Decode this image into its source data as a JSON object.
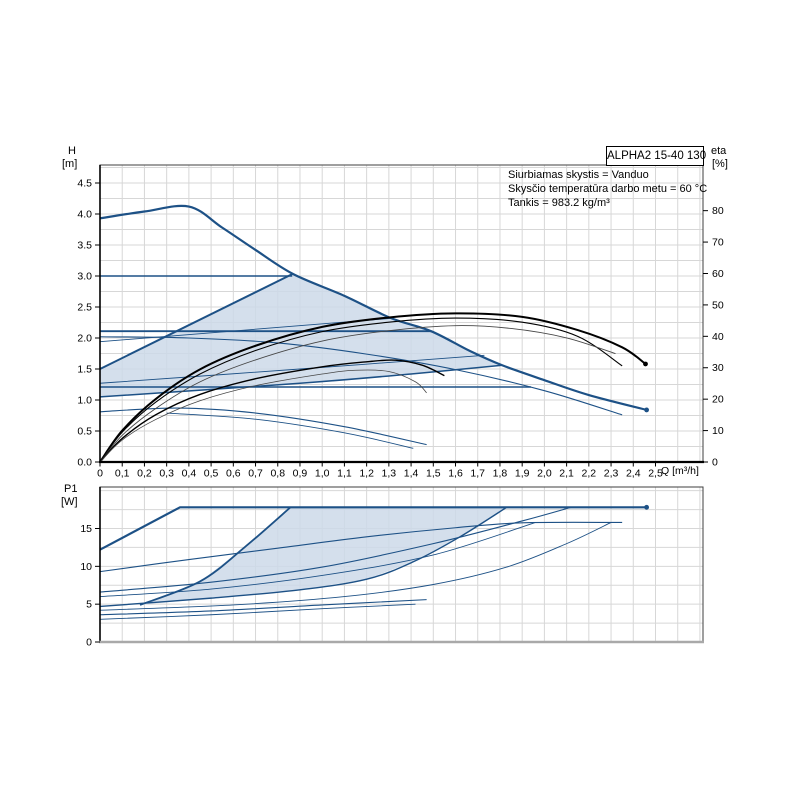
{
  "pump_name": "ALPHA2 15-40 130",
  "info_lines": [
    "Siurbiamas skystis = Vanduo",
    "Skysčio temperatūra darbo metu = 60 °C",
    "Tankis = 983.2 kg/m³"
  ],
  "colors": {
    "blue": "#1d5186",
    "black": "#000000",
    "gray": "#474747",
    "shade": "#cdd9e9",
    "grid": "#d7d7d7",
    "border": "#3f3f3f",
    "axis_black": "#000000",
    "axis_gray": "#a9a9a9",
    "text": "#000000"
  },
  "chart_data": [
    {
      "type": "line",
      "name": "qh-eta-chart",
      "x": {
        "label": "Q [m³/h]",
        "min": 0,
        "max": 2.7138,
        "grid_step": 0.1,
        "tick_step": 0.1,
        "tick_labels": [
          "0",
          "0,1",
          "0,2",
          "0,3",
          "0,4",
          "0,5",
          "0,6",
          "0,7",
          "0,8",
          "0,9",
          "1,0",
          "1,1",
          "1,2",
          "1,3",
          "1,4",
          "1,5",
          "1,6",
          "1,7",
          "1,8",
          "1,9",
          "2,0",
          "2,1",
          "2,2",
          "2,3",
          "2,4",
          "2,5"
        ]
      },
      "y_left": {
        "title_lines": [
          "H",
          "[m]"
        ],
        "min": 0,
        "max": 4.7903,
        "grid_step": 0.25,
        "tick_step": 0.5,
        "tick_labels": [
          "0.0",
          "0.5",
          "1.0",
          "1.5",
          "2.0",
          "2.5",
          "3.0",
          "3.5",
          "4.0",
          "4.5"
        ]
      },
      "y_right": {
        "title_lines": [
          "eta",
          "[%]"
        ],
        "min": 0,
        "max": 94.53,
        "tick_step": 10,
        "tick_labels": [
          "0",
          "10",
          "20",
          "30",
          "40",
          "50",
          "60",
          "70",
          "80"
        ]
      },
      "shade_polygon": [
        [
          0,
          1.05
        ],
        [
          0,
          1.5
        ],
        [
          0.865,
          3.03
        ],
        [
          1.1,
          2.68
        ],
        [
          1.31,
          2.32
        ],
        [
          1.49,
          2.11
        ],
        [
          1.665,
          1.79
        ],
        [
          1.81,
          1.56
        ],
        [
          1.4,
          1.42
        ],
        [
          0.9,
          1.27
        ]
      ],
      "series": [
        {
          "name": "max-speed-curve",
          "axis": "left",
          "color": "blue",
          "width": 2.2,
          "smooth": true,
          "end_marker": true,
          "points": [
            [
              0,
              3.93
            ],
            [
              0.2,
              4.04
            ],
            [
              0.4,
              4.12
            ],
            [
              0.55,
              3.78
            ],
            [
              0.7,
              3.42
            ],
            [
              0.87,
              3.03
            ],
            [
              1.1,
              2.68
            ],
            [
              1.31,
              2.32
            ],
            [
              1.49,
              2.11
            ],
            [
              1.665,
              1.79
            ],
            [
              1.81,
              1.56
            ],
            [
              2.0,
              1.32
            ],
            [
              2.2,
              1.08
            ],
            [
              2.46,
              0.84
            ]
          ]
        },
        {
          "name": "speed-2-curve",
          "axis": "left",
          "color": "blue",
          "width": 1.1,
          "smooth": true,
          "points": [
            [
              0,
              2.02
            ],
            [
              0.4,
              2.0
            ],
            [
              0.8,
              1.92
            ],
            [
              1.2,
              1.74
            ],
            [
              1.6,
              1.49
            ],
            [
              2.0,
              1.15
            ],
            [
              2.35,
              0.76
            ]
          ]
        },
        {
          "name": "speed-1-curve-a",
          "axis": "left",
          "color": "blue",
          "width": 1.1,
          "smooth": true,
          "points": [
            [
              0,
              0.81
            ],
            [
              0.35,
              0.87
            ],
            [
              0.7,
              0.79
            ],
            [
              1.1,
              0.57
            ],
            [
              1.47,
              0.28
            ]
          ]
        },
        {
          "name": "speed-1-curve-b",
          "axis": "left",
          "color": "blue",
          "width": 0.9,
          "smooth": true,
          "points": [
            [
              0.3,
              0.79
            ],
            [
              0.7,
              0.69
            ],
            [
              1.1,
              0.47
            ],
            [
              1.41,
              0.22
            ]
          ]
        },
        {
          "name": "const-pressure-3",
          "axis": "left",
          "color": "blue",
          "width": 1.5,
          "smooth": false,
          "points": [
            [
              0,
              3.0
            ],
            [
              0.865,
              3.0
            ]
          ]
        },
        {
          "name": "const-pressure-2",
          "axis": "left",
          "color": "blue",
          "width": 1.8,
          "smooth": false,
          "points": [
            [
              0,
              2.11
            ],
            [
              1.49,
              2.11
            ]
          ]
        },
        {
          "name": "const-pressure-1",
          "axis": "left",
          "color": "blue",
          "width": 1.5,
          "smooth": false,
          "points": [
            [
              0,
              1.21
            ],
            [
              1.94,
              1.21
            ]
          ]
        },
        {
          "name": "prop-pressure-max",
          "axis": "left",
          "color": "blue",
          "width": 2.0,
          "smooth": false,
          "points": [
            [
              0,
              1.5
            ],
            [
              0.865,
              3.03
            ]
          ]
        },
        {
          "name": "prop-pressure-mid",
          "axis": "left",
          "color": "blue",
          "width": 0.9,
          "smooth": true,
          "points": [
            [
              0,
              1.27
            ],
            [
              0.9,
              1.5
            ],
            [
              1.73,
              1.72
            ]
          ]
        },
        {
          "name": "prop-pressure-aux",
          "axis": "left",
          "color": "blue",
          "width": 0.9,
          "smooth": false,
          "points": [
            [
              0,
              1.94
            ],
            [
              1.32,
              2.32
            ]
          ]
        },
        {
          "name": "prop-pressure-min",
          "axis": "left",
          "color": "blue",
          "width": 1.5,
          "smooth": true,
          "points": [
            [
              0,
              1.05
            ],
            [
              0.9,
              1.27
            ],
            [
              1.4,
              1.42
            ],
            [
              1.81,
              1.56
            ]
          ]
        },
        {
          "name": "eta-curve-1",
          "axis": "right",
          "color": "black",
          "width": 2.0,
          "smooth": true,
          "end_marker": true,
          "points": [
            [
              0,
              0
            ],
            [
              0.1,
              10
            ],
            [
              0.25,
              20
            ],
            [
              0.45,
              29.5
            ],
            [
              0.7,
              37
            ],
            [
              1.0,
              43
            ],
            [
              1.3,
              46
            ],
            [
              1.6,
              47.3
            ],
            [
              1.9,
              46.2
            ],
            [
              2.15,
              42
            ],
            [
              2.35,
              36.5
            ],
            [
              2.455,
              31.2
            ]
          ]
        },
        {
          "name": "eta-curve-2",
          "axis": "right",
          "color": "black",
          "width": 1.1,
          "smooth": true,
          "points": [
            [
              0,
              0
            ],
            [
              0.1,
              9.5
            ],
            [
              0.25,
              19
            ],
            [
              0.45,
              28
            ],
            [
              0.7,
              35.5
            ],
            [
              1.0,
              41.5
            ],
            [
              1.3,
              44.5
            ],
            [
              1.6,
              45.8
            ],
            [
              1.9,
              44.5
            ],
            [
              2.15,
              40
            ],
            [
              2.35,
              30.6
            ]
          ]
        },
        {
          "name": "eta-curve-3",
          "axis": "right",
          "color": "gray",
          "width": 0.9,
          "smooth": true,
          "points": [
            [
              0,
              0
            ],
            [
              0.1,
              8.5
            ],
            [
              0.25,
              17
            ],
            [
              0.45,
              25.5
            ],
            [
              0.7,
              32.5
            ],
            [
              1.0,
              38.5
            ],
            [
              1.3,
              41.8
            ],
            [
              1.6,
              43.4
            ],
            [
              1.85,
              42.5
            ],
            [
              2.1,
              39.5
            ],
            [
              2.32,
              34.5
            ]
          ]
        },
        {
          "name": "eta-curve-mid",
          "axis": "right",
          "color": "black",
          "width": 1.4,
          "smooth": true,
          "points": [
            [
              0,
              0
            ],
            [
              0.1,
              7.5
            ],
            [
              0.25,
              15
            ],
            [
              0.45,
              21.5
            ],
            [
              0.7,
              26.5
            ],
            [
              1.0,
              30.3
            ],
            [
              1.2,
              31.9
            ],
            [
              1.33,
              32.4
            ],
            [
              1.45,
              30.8
            ],
            [
              1.55,
              27.5
            ]
          ]
        },
        {
          "name": "eta-curve-low",
          "axis": "right",
          "color": "gray",
          "width": 0.8,
          "smooth": true,
          "points": [
            [
              0,
              0
            ],
            [
              0.1,
              7
            ],
            [
              0.25,
              13.5
            ],
            [
              0.45,
              19.5
            ],
            [
              0.7,
              24.3
            ],
            [
              1.0,
              28
            ],
            [
              1.15,
              29.2
            ],
            [
              1.3,
              28.8
            ],
            [
              1.42,
              25.5
            ],
            [
              1.47,
              22
            ]
          ]
        }
      ]
    },
    {
      "type": "line",
      "name": "p1-chart",
      "x": {
        "label": "",
        "min": 0,
        "max": 2.7138,
        "grid_step": 0.1,
        "tick_step": 0.1,
        "tick_labels": []
      },
      "y_left": {
        "title_lines": [
          "P1",
          "[W]"
        ],
        "min": 0,
        "max": 20.486,
        "grid_step": 2.5,
        "tick_step": 5,
        "tick_labels": [
          "0",
          "5",
          "10",
          "15"
        ]
      },
      "shade_polygon": [
        [
          0.18,
          4.9
        ],
        [
          0.45,
          8.0
        ],
        [
          0.65,
          12.5
        ],
        [
          0.857,
          17.8
        ],
        [
          1.83,
          17.8
        ],
        [
          1.62,
          13.9
        ],
        [
          1.41,
          10.6
        ],
        [
          1.2,
          8.3
        ],
        [
          0.9,
          6.9
        ],
        [
          0.5,
          5.8
        ]
      ],
      "series": [
        {
          "name": "p1-max-speed",
          "axis": "left",
          "color": "blue",
          "width": 2.2,
          "smooth": false,
          "end_marker": true,
          "points": [
            [
              0,
              12.2
            ],
            [
              0.36,
              17.8
            ],
            [
              2.46,
              17.8
            ]
          ]
        },
        {
          "name": "p1-speed-2",
          "axis": "left",
          "color": "blue",
          "width": 1.1,
          "smooth": true,
          "points": [
            [
              0,
              9.3
            ],
            [
              0.4,
              10.9
            ],
            [
              0.8,
              12.4
            ],
            [
              1.2,
              13.9
            ],
            [
              1.6,
              15.1
            ],
            [
              1.9,
              15.75
            ],
            [
              2.35,
              15.8
            ]
          ]
        },
        {
          "name": "p1-const-pressure-3",
          "axis": "left",
          "color": "blue",
          "width": 1.1,
          "smooth": true,
          "points": [
            [
              0,
              6.6
            ],
            [
              0.5,
              7.9
            ],
            [
              1.0,
              9.9
            ],
            [
              1.5,
              13.0
            ],
            [
              1.9,
              16.0
            ],
            [
              2.12,
              17.8
            ]
          ]
        },
        {
          "name": "p1-prop-pressure-mid",
          "axis": "left",
          "color": "blue",
          "width": 0.9,
          "smooth": true,
          "points": [
            [
              0,
              6.0
            ],
            [
              0.5,
              7.0
            ],
            [
              1.0,
              8.8
            ],
            [
              1.5,
              11.5
            ],
            [
              1.96,
              15.8
            ]
          ]
        },
        {
          "name": "p1-aux-curve",
          "axis": "left",
          "color": "blue",
          "width": 0.9,
          "smooth": true,
          "points": [
            [
              0,
              4.2
            ],
            [
              0.6,
              4.9
            ],
            [
              1.1,
              6.0
            ],
            [
              1.5,
              7.6
            ],
            [
              1.83,
              9.9
            ],
            [
              2.1,
              13.0
            ],
            [
              2.3,
              15.8
            ]
          ]
        },
        {
          "name": "p1-autoadapt-top",
          "axis": "left",
          "color": "blue",
          "width": 1.8,
          "smooth": true,
          "points": [
            [
              0.18,
              4.9
            ],
            [
              0.45,
              8.0
            ],
            [
              0.65,
              12.5
            ],
            [
              0.857,
              17.8
            ]
          ]
        },
        {
          "name": "p1-autoadapt-bottom",
          "axis": "left",
          "color": "blue",
          "width": 1.4,
          "smooth": true,
          "points": [
            [
              0,
              4.7
            ],
            [
              0.5,
              5.8
            ],
            [
              0.9,
              6.9
            ],
            [
              1.2,
              8.3
            ],
            [
              1.41,
              10.6
            ],
            [
              1.62,
              13.9
            ],
            [
              1.83,
              17.8
            ]
          ]
        },
        {
          "name": "p1-speed-1a",
          "axis": "left",
          "color": "blue",
          "width": 1.1,
          "smooth": true,
          "points": [
            [
              0,
              3.6
            ],
            [
              0.5,
              4.1
            ],
            [
              1.0,
              4.9
            ],
            [
              1.47,
              5.6
            ]
          ]
        },
        {
          "name": "p1-speed-1b",
          "axis": "left",
          "color": "blue",
          "width": 0.9,
          "smooth": true,
          "points": [
            [
              0,
              3.0
            ],
            [
              0.5,
              3.6
            ],
            [
              1.0,
              4.4
            ],
            [
              1.42,
              5.0
            ]
          ]
        }
      ]
    }
  ]
}
